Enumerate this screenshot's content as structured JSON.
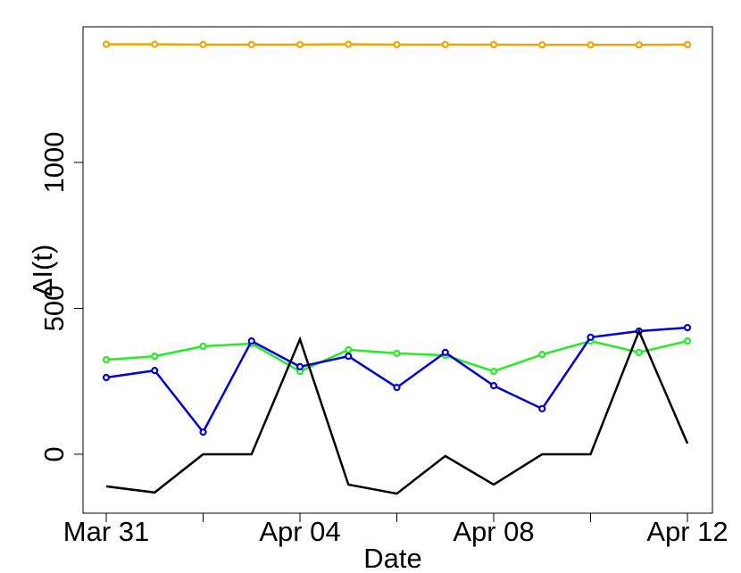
{
  "chart_data": {
    "type": "line",
    "x_label": "Date",
    "y_label": "ΔI(t)",
    "categories": [
      "Mar 31",
      null,
      null,
      null,
      "Apr 04",
      null,
      null,
      null,
      "Apr 08",
      null,
      null,
      null,
      "Apr 12"
    ],
    "series": [
      {
        "color": "#f5a300",
        "markers": true,
        "values": [
          1405,
          1405,
          1404,
          1404,
          1404,
          1405,
          1404,
          1404,
          1404,
          1403,
          1403,
          1403,
          1404
        ]
      },
      {
        "color": "#22ee22",
        "markers": true,
        "values": [
          324,
          336,
          370,
          379,
          284,
          358,
          346,
          339,
          284,
          342,
          388,
          349,
          388
        ]
      },
      {
        "color": "#0000dd",
        "markers": true,
        "values": [
          263,
          287,
          76,
          388,
          300,
          336,
          229,
          349,
          235,
          156,
          401,
          422,
          434
        ]
      },
      {
        "color": "#000000",
        "markers": false,
        "values": [
          -110,
          -131,
          0,
          0,
          394,
          -104,
          -135,
          -6,
          -104,
          0,
          0,
          422,
          37
        ]
      }
    ],
    "ylim": [
      -202,
      1465
    ],
    "yticks": [
      0,
      500,
      1000
    ],
    "grid": false
  }
}
